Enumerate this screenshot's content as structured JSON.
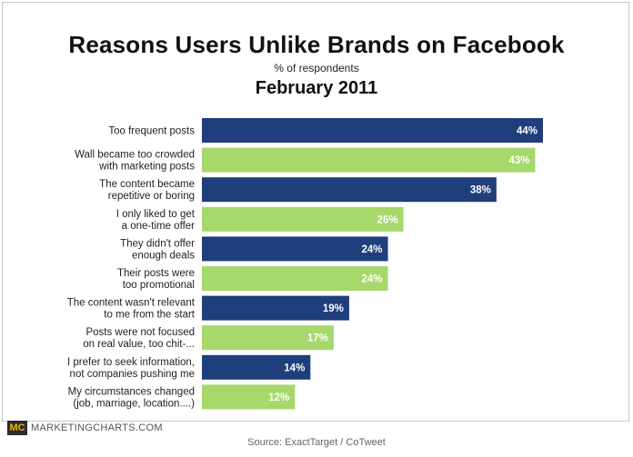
{
  "colors": {
    "blue": "#1f3e7c",
    "green": "#a6d86b",
    "value_text": "#ffffff"
  },
  "footer": {
    "logo_mark": "MC",
    "logo_text": "MARKETINGCHARTS.COM",
    "source": "Source: ExactTarget / CoTweet"
  },
  "chart_data": {
    "type": "bar",
    "orientation": "horizontal",
    "title": "Reasons Users Unlike Brands on Facebook",
    "subtitle": "% of respondents",
    "date": "February 2011",
    "xlim": [
      0,
      44
    ],
    "categories": [
      [
        "Too frequent posts"
      ],
      [
        "Wall became too crowded",
        "with marketing posts"
      ],
      [
        "The content became",
        "repetitive or boring"
      ],
      [
        "I only liked to get",
        "a one-time offer"
      ],
      [
        "They didn't offer",
        "enough deals"
      ],
      [
        "Their posts were",
        "too promotional"
      ],
      [
        "The content wasn't relevant",
        "to me from the start"
      ],
      [
        "Posts were not focused",
        "on real value, too chit-..."
      ],
      [
        "I prefer to seek information,",
        "not companies pushing me"
      ],
      [
        "My circumstances changed",
        "(job, marriage, location....)"
      ]
    ],
    "values": [
      44,
      43,
      38,
      26,
      24,
      24,
      19,
      17,
      14,
      12
    ],
    "value_labels": [
      "44%",
      "43%",
      "38%",
      "26%",
      "24%",
      "24%",
      "19%",
      "17%",
      "14%",
      "12%"
    ],
    "bar_colors": [
      "blue",
      "green",
      "blue",
      "green",
      "blue",
      "green",
      "blue",
      "green",
      "blue",
      "green"
    ]
  }
}
